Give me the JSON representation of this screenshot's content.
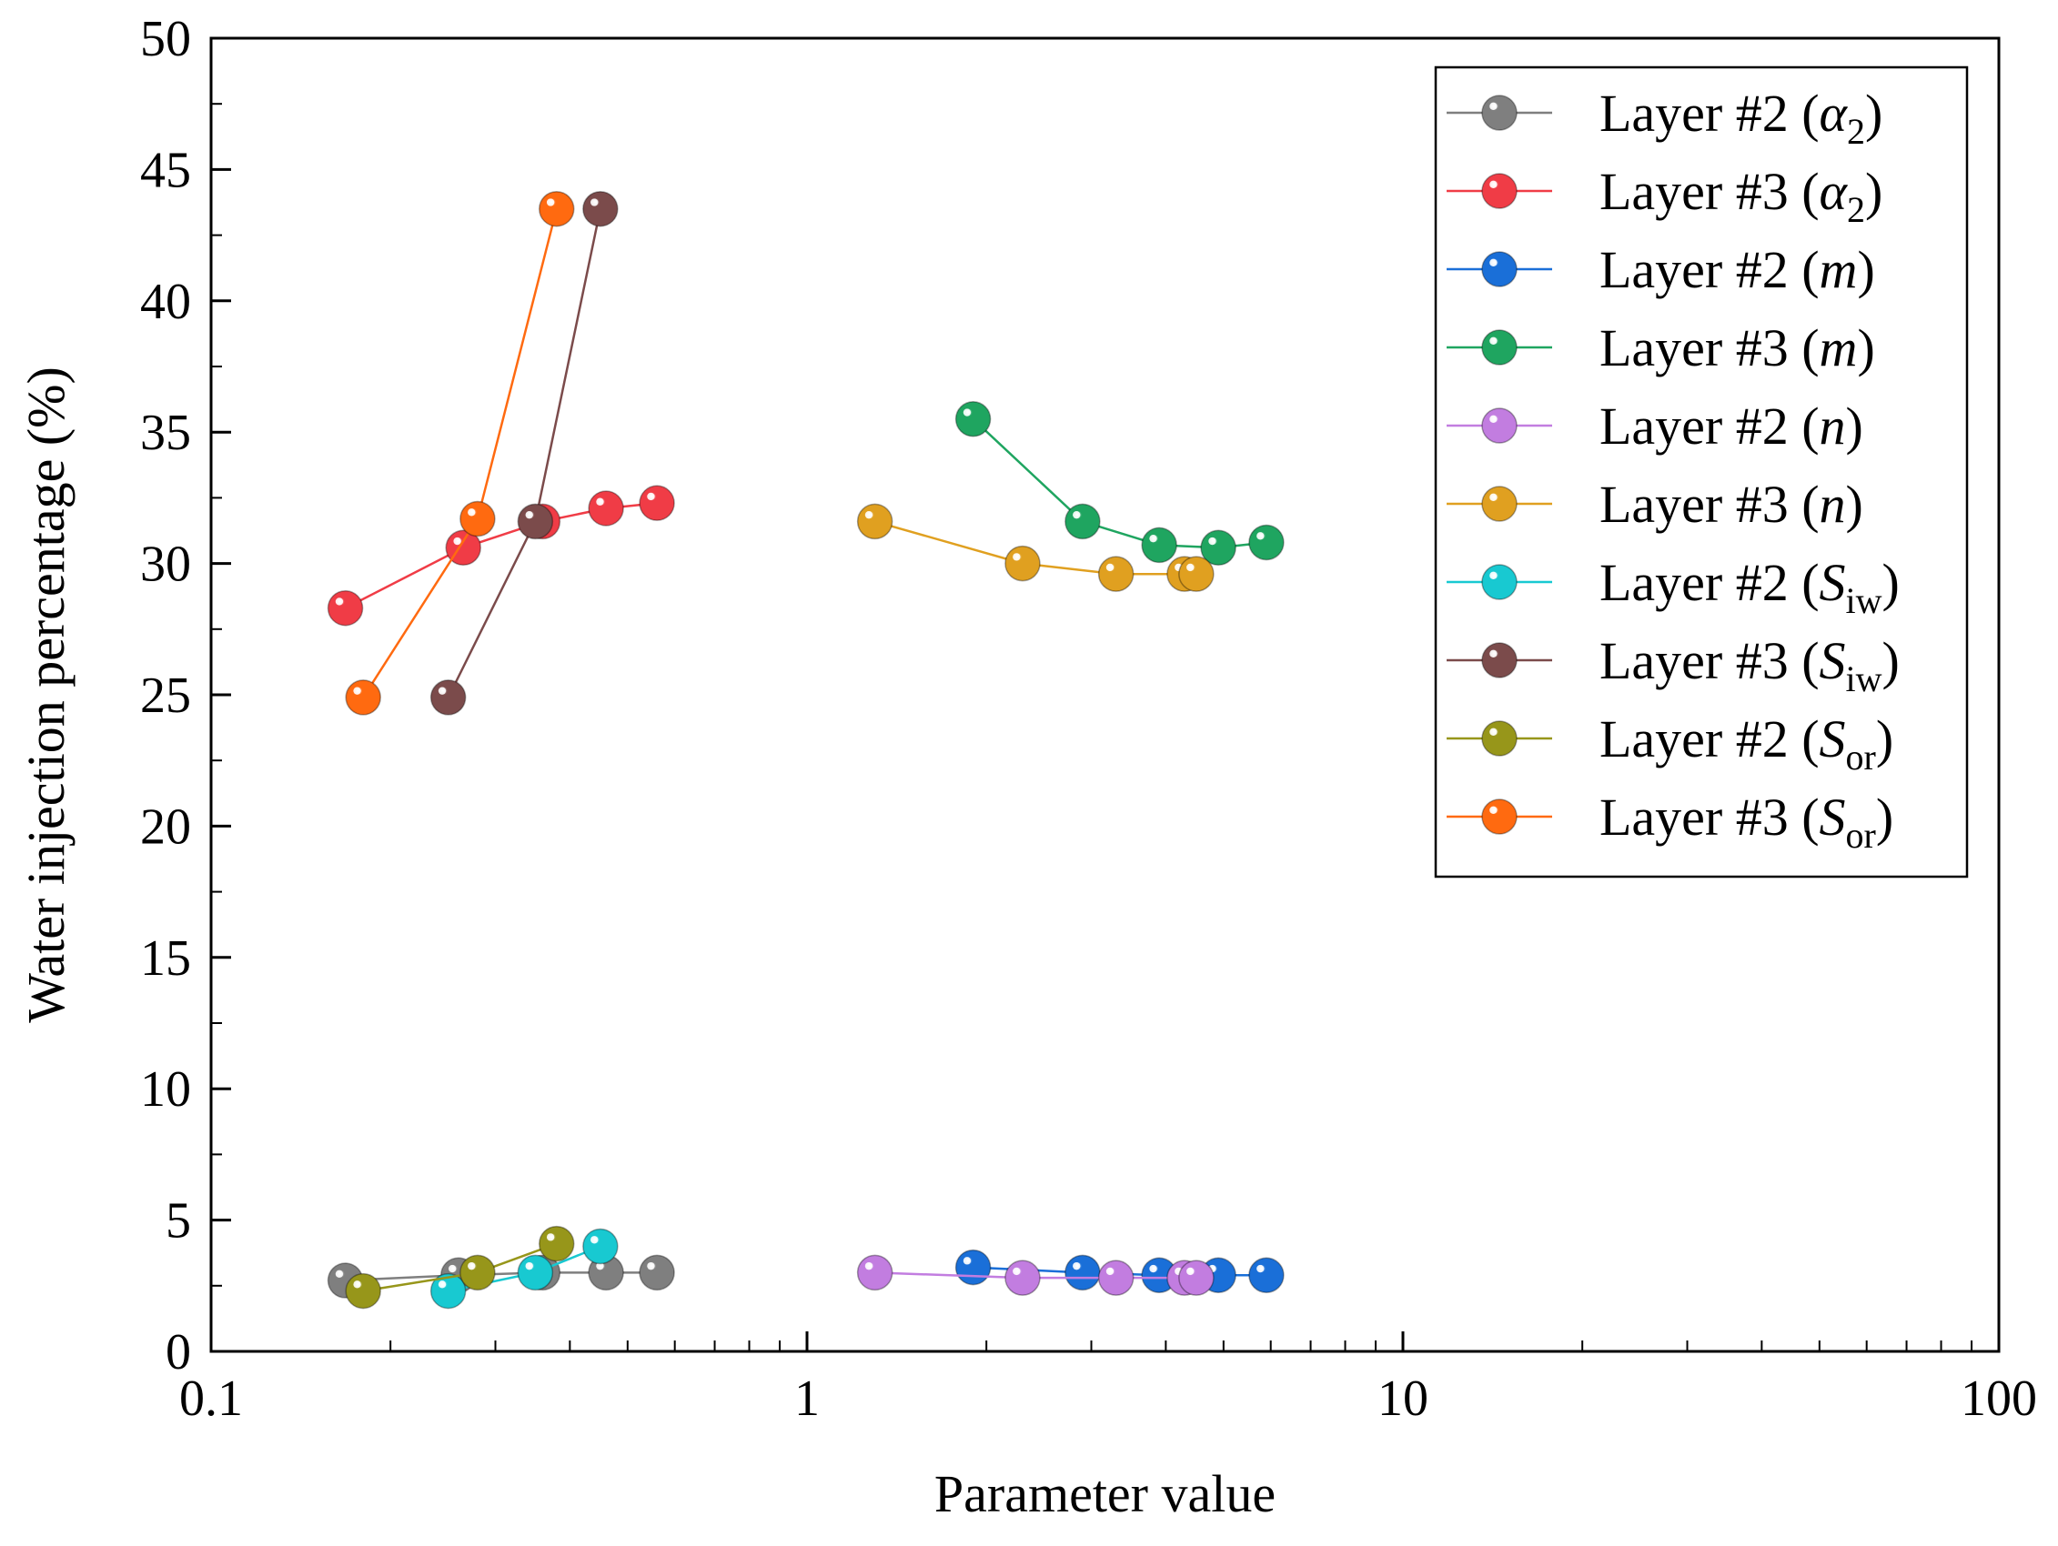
{
  "chart_data": {
    "type": "line",
    "title": "",
    "xlabel": "Parameter value",
    "ylabel": "Water injection percentage (%)",
    "xscale": "log",
    "xlim": [
      0.1,
      100
    ],
    "ylim": [
      0,
      50
    ],
    "x_ticks": [
      {
        "value": 0.1,
        "label": "0.1"
      },
      {
        "value": 1,
        "label": "1"
      },
      {
        "value": 10,
        "label": "10"
      },
      {
        "value": 100,
        "label": "100"
      }
    ],
    "y_ticks": [
      {
        "value": 0,
        "label": "0"
      },
      {
        "value": 5,
        "label": "5"
      },
      {
        "value": 10,
        "label": "10"
      },
      {
        "value": 15,
        "label": "15"
      },
      {
        "value": 20,
        "label": "20"
      },
      {
        "value": 25,
        "label": "25"
      },
      {
        "value": 30,
        "label": "30"
      },
      {
        "value": 35,
        "label": "35"
      },
      {
        "value": 40,
        "label": "40"
      },
      {
        "value": 45,
        "label": "45"
      },
      {
        "value": 50,
        "label": "50"
      }
    ],
    "grid": false,
    "legend_position": "top-right",
    "series": [
      {
        "name": "Layer #2 (α2)",
        "label_main": "Layer #2 (",
        "label_sym": "α",
        "label_sub": "2",
        "label_close": ")",
        "color": "#7f7f7f",
        "x": [
          0.168,
          0.26,
          0.36,
          0.46,
          0.56
        ],
        "y": [
          2.7,
          2.9,
          3.0,
          3.0,
          3.0
        ]
      },
      {
        "name": "Layer #3 (α2)",
        "label_main": "Layer #3 (",
        "label_sym": "α",
        "label_sub": "2",
        "label_close": ")",
        "color": "#f03c46",
        "x": [
          0.168,
          0.265,
          0.36,
          0.46,
          0.56
        ],
        "y": [
          28.3,
          30.6,
          31.6,
          32.1,
          32.3
        ]
      },
      {
        "name": "Layer #2 (m)",
        "label_main": "Layer #2 (",
        "label_sym": "m",
        "label_sub": "",
        "label_close": ")",
        "color": "#1a6fd8",
        "x": [
          1.9,
          2.9,
          3.9,
          4.9,
          5.9
        ],
        "y": [
          3.2,
          3.0,
          2.9,
          2.9,
          2.9
        ]
      },
      {
        "name": "Layer #3 (m)",
        "label_main": "Layer #3 (",
        "label_sym": "m",
        "label_sub": "",
        "label_close": ")",
        "color": "#1fa560",
        "x": [
          1.9,
          2.9,
          3.9,
          4.9,
          5.9
        ],
        "y": [
          35.5,
          31.6,
          30.7,
          30.6,
          30.8
        ]
      },
      {
        "name": "Layer #2 (n)",
        "label_main": "Layer #2 (",
        "label_sym": "n",
        "label_sub": "",
        "label_close": ")",
        "color": "#c27de0",
        "x": [
          1.3,
          2.3,
          3.3,
          4.3,
          4.5
        ],
        "y": [
          3.0,
          2.8,
          2.8,
          2.8,
          2.8
        ]
      },
      {
        "name": "Layer #3 (n)",
        "label_main": "Layer #3 (",
        "label_sym": "n",
        "label_sub": "",
        "label_close": ")",
        "color": "#e0a020",
        "x": [
          1.3,
          2.3,
          3.3,
          4.3,
          4.5
        ],
        "y": [
          31.6,
          30.0,
          29.6,
          29.6,
          29.6
        ]
      },
      {
        "name": "Layer #2 (Siw)",
        "label_main": "Layer #2 (",
        "label_sym": "S",
        "label_sub": "iw",
        "label_close": ")",
        "color": "#18c9d1",
        "x": [
          0.25,
          0.35,
          0.45
        ],
        "y": [
          2.3,
          3.0,
          4.0
        ]
      },
      {
        "name": "Layer #3 (Siw)",
        "label_main": "Layer #3 (",
        "label_sym": "S",
        "label_sub": "iw",
        "label_close": ")",
        "color": "#7b4b4b",
        "x": [
          0.25,
          0.35,
          0.45
        ],
        "y": [
          24.9,
          31.6,
          43.5
        ]
      },
      {
        "name": "Layer #2 (Sor)",
        "label_main": "Layer #2 (",
        "label_sym": "S",
        "label_sub": "or",
        "label_close": ")",
        "color": "#97961a",
        "x": [
          0.18,
          0.28,
          0.38
        ],
        "y": [
          2.3,
          3.0,
          4.1
        ]
      },
      {
        "name": "Layer #3 (Sor)",
        "label_main": "Layer #3 (",
        "label_sym": "S",
        "label_sub": "or",
        "label_close": ")",
        "color": "#ff6a10",
        "x": [
          0.18,
          0.28,
          0.38
        ],
        "y": [
          24.9,
          31.7,
          43.5
        ]
      }
    ]
  }
}
